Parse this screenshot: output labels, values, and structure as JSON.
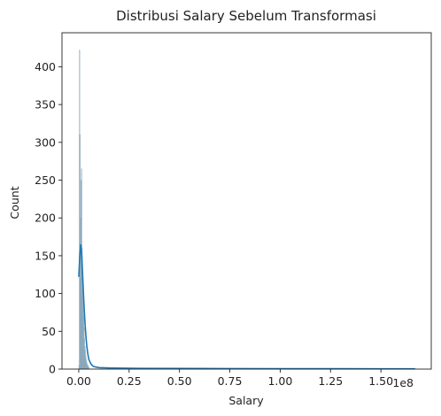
{
  "chart_data": {
    "type": "histogram",
    "title": "Distribusi Salary Sebelum Transformasi",
    "xlabel": "Salary",
    "ylabel": "Count",
    "x_offset_label": "1e8",
    "xlim": [
      -0.0833,
      1.75
    ],
    "ylim": [
      0,
      445
    ],
    "x_ticks": [
      0.0,
      0.25,
      0.5,
      0.75,
      1.0,
      1.25,
      1.5
    ],
    "x_tick_labels": [
      "0.00",
      "0.25",
      "0.50",
      "0.75",
      "1.00",
      "1.25",
      "1.50"
    ],
    "y_ticks": [
      0,
      50,
      100,
      150,
      200,
      250,
      300,
      350,
      400
    ],
    "y_tick_labels": [
      "0",
      "50",
      "100",
      "150",
      "200",
      "250",
      "300",
      "350",
      "400"
    ],
    "bins": [
      {
        "x": 0.0,
        "count": 5
      },
      {
        "x": 0.002,
        "count": 422
      },
      {
        "x": 0.004,
        "count": 310
      },
      {
        "x": 0.006,
        "count": 200
      },
      {
        "x": 0.008,
        "count": 120
      },
      {
        "x": 0.01,
        "count": 250
      },
      {
        "x": 0.012,
        "count": 265
      },
      {
        "x": 0.014,
        "count": 160
      },
      {
        "x": 0.016,
        "count": 95
      },
      {
        "x": 0.018,
        "count": 120
      },
      {
        "x": 0.02,
        "count": 70
      },
      {
        "x": 0.022,
        "count": 85
      },
      {
        "x": 0.024,
        "count": 55
      },
      {
        "x": 0.026,
        "count": 40
      },
      {
        "x": 0.028,
        "count": 30
      },
      {
        "x": 0.03,
        "count": 25
      },
      {
        "x": 0.032,
        "count": 18
      },
      {
        "x": 0.034,
        "count": 14
      },
      {
        "x": 0.036,
        "count": 10
      },
      {
        "x": 0.038,
        "count": 8
      },
      {
        "x": 0.04,
        "count": 6
      },
      {
        "x": 0.042,
        "count": 5
      },
      {
        "x": 0.044,
        "count": 4
      },
      {
        "x": 0.046,
        "count": 3
      },
      {
        "x": 0.048,
        "count": 2
      }
    ],
    "bin_width": 0.002,
    "kde": [
      [
        0.0,
        122
      ],
      [
        0.005,
        150
      ],
      [
        0.01,
        165
      ],
      [
        0.015,
        150
      ],
      [
        0.02,
        120
      ],
      [
        0.025,
        90
      ],
      [
        0.03,
        65
      ],
      [
        0.035,
        45
      ],
      [
        0.04,
        30
      ],
      [
        0.045,
        20
      ],
      [
        0.05,
        13
      ],
      [
        0.06,
        7
      ],
      [
        0.07,
        4
      ],
      [
        0.08,
        3
      ],
      [
        0.1,
        2
      ],
      [
        0.15,
        1.5
      ],
      [
        0.3,
        1.0
      ],
      [
        0.6,
        0.8
      ],
      [
        1.0,
        0.6
      ],
      [
        1.3,
        0.5
      ],
      [
        1.5,
        0.4
      ],
      [
        1.67,
        0.4
      ]
    ]
  },
  "colors": {
    "bar": "#99b4c6",
    "bar_edge": "#7fa0b5",
    "kde": "#1f77b4",
    "axis": "#222222"
  }
}
